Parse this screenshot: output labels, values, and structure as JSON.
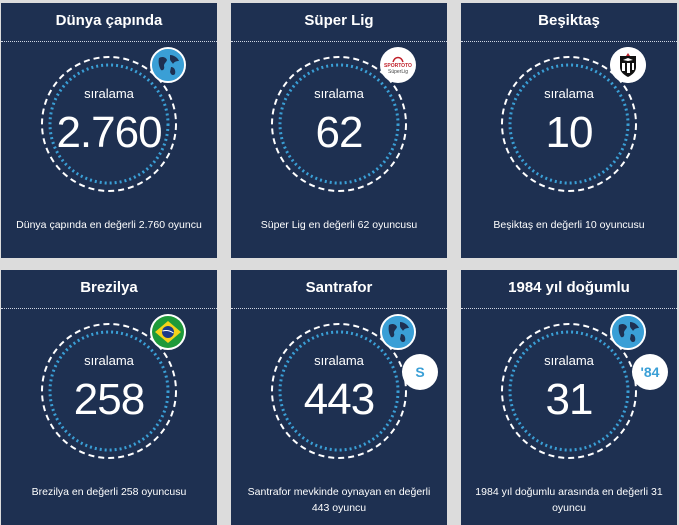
{
  "cards": [
    {
      "title": "Dünya çapında",
      "rank_label": "sıralama",
      "value": "2.760",
      "caption": "Dünya çapında en değerli 2.760 oyuncu",
      "badge_icon": "globe-icon"
    },
    {
      "title": "Süper Lig",
      "rank_label": "sıralama",
      "value": "62",
      "caption": "Süper Lig en değerli 62 oyuncusu",
      "badge_icon": "super-lig-logo-icon",
      "logo_text_1": "SPORTOTO",
      "logo_text_2": "SüperLig"
    },
    {
      "title": "Beşiktaş",
      "rank_label": "sıralama",
      "value": "10",
      "caption": "Beşiktaş en değerli 10 oyuncusu",
      "badge_icon": "besiktas-crest-icon"
    },
    {
      "title": "Brezilya",
      "rank_label": "sıralama",
      "value": "258",
      "caption": "Brezilya en değerli 258 oyuncusu",
      "badge_icon": "brazil-flag-icon"
    },
    {
      "title": "Santrafor",
      "rank_label": "sıralama",
      "value": "443",
      "caption": "Santrafor mevkinde oynayan en değerli 443 oyuncu",
      "badge_icon": "globe-icon",
      "extra_badge": "S"
    },
    {
      "title": "1984 yıl doğumlu",
      "rank_label": "sıralama",
      "value": "31",
      "caption": "1984 yıl doğumlu arasında en değerli 31 oyuncu",
      "badge_icon": "globe-icon",
      "extra_badge": "'84"
    }
  ],
  "colors": {
    "card_bg": "#1e3051",
    "page_bg": "#dcdcdc",
    "accent": "#3a9fd6",
    "ring": "#ffffff"
  }
}
